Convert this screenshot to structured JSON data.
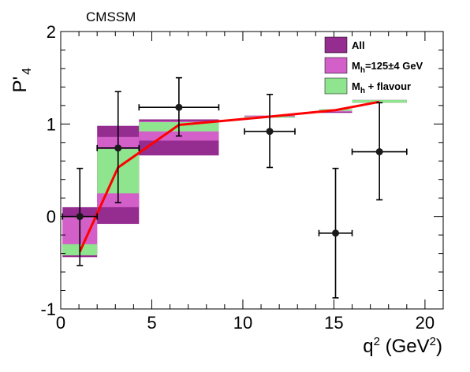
{
  "chart_data": {
    "type": "scatter",
    "label": "CMSSM",
    "xlabel": "q",
    "xlabel_sup": "2",
    "xlabel_unit_open": " (GeV",
    "xlabel_unit_sup": "2",
    "xlabel_unit_close": ")",
    "ylabel": "P'",
    "ylabel_sub": "4",
    "xlim": [
      0,
      21
    ],
    "ylim": [
      -1,
      2
    ],
    "xticks": [
      0,
      5,
      10,
      15,
      20
    ],
    "yticks": [
      -1,
      0,
      1,
      2
    ],
    "grid": false,
    "legend_position": "top-right",
    "colors": {
      "all": "#952c8f",
      "higgs": "#d35fc8",
      "flavour": "#8ee58e",
      "line": "#ff0000",
      "data": "#1a1a1a"
    },
    "legend": [
      {
        "key": "all",
        "label": "All"
      },
      {
        "key": "higgs",
        "label_main": "M",
        "label_sub": "h",
        "label_rest": "=125±4 GeV"
      },
      {
        "key": "flavour",
        "label_main": "M",
        "label_sub": "h",
        "label_rest": " + flavour"
      }
    ],
    "bins": [
      {
        "x": [
          0.1,
          2.0
        ],
        "all": [
          -0.44,
          0.1
        ],
        "higgs": [
          -0.42,
          0.0
        ],
        "flavour": [
          -0.42,
          -0.3
        ]
      },
      {
        "x": [
          2.0,
          4.3
        ],
        "all": [
          -0.08,
          0.98
        ],
        "higgs": [
          0.1,
          0.86
        ],
        "flavour": [
          0.25,
          0.73
        ]
      },
      {
        "x": [
          4.3,
          8.68
        ],
        "all": [
          0.66,
          1.05
        ],
        "higgs": [
          0.82,
          1.03
        ],
        "flavour": [
          0.92,
          1.02
        ]
      },
      {
        "x": [
          10.09,
          12.86
        ],
        "all": [
          1.07,
          1.09
        ],
        "higgs": [
          1.07,
          1.09
        ],
        "flavour": [
          1.07,
          1.08
        ]
      },
      {
        "x": [
          14.18,
          16.0
        ],
        "all": [
          1.12,
          1.16
        ],
        "higgs": [
          1.13,
          1.16
        ],
        "flavour": [
          1.14,
          1.16
        ]
      },
      {
        "x": [
          16.0,
          19.0
        ],
        "all": [
          1.23,
          1.26
        ],
        "higgs": [
          1.23,
          1.26
        ],
        "flavour": [
          1.23,
          1.26
        ]
      }
    ],
    "prediction_line": {
      "x": [
        1.05,
        3.15,
        6.49,
        11.475,
        15.09,
        17.5
      ],
      "y": [
        -0.38,
        0.53,
        0.99,
        1.08,
        1.15,
        1.24
      ]
    },
    "data_points": [
      {
        "x": 1.05,
        "xerr": 0.95,
        "y": 0.0,
        "yerr_low": 0.53,
        "yerr_high": 0.52
      },
      {
        "x": 3.15,
        "xerr": 1.15,
        "y": 0.74,
        "yerr_low": 0.59,
        "yerr_high": 0.61
      },
      {
        "x": 6.49,
        "xerr": 2.19,
        "y": 1.18,
        "yerr_low": 0.31,
        "yerr_high": 0.32
      },
      {
        "x": 11.475,
        "xerr": 1.385,
        "y": 0.92,
        "yerr_low": 0.39,
        "yerr_high": 0.4
      },
      {
        "x": 15.09,
        "xerr": 0.91,
        "y": -0.18,
        "yerr_low": 0.7,
        "yerr_high": 0.7
      },
      {
        "x": 17.5,
        "xerr": 1.5,
        "y": 0.7,
        "yerr_low": 0.52,
        "yerr_high": 0.53
      }
    ]
  }
}
